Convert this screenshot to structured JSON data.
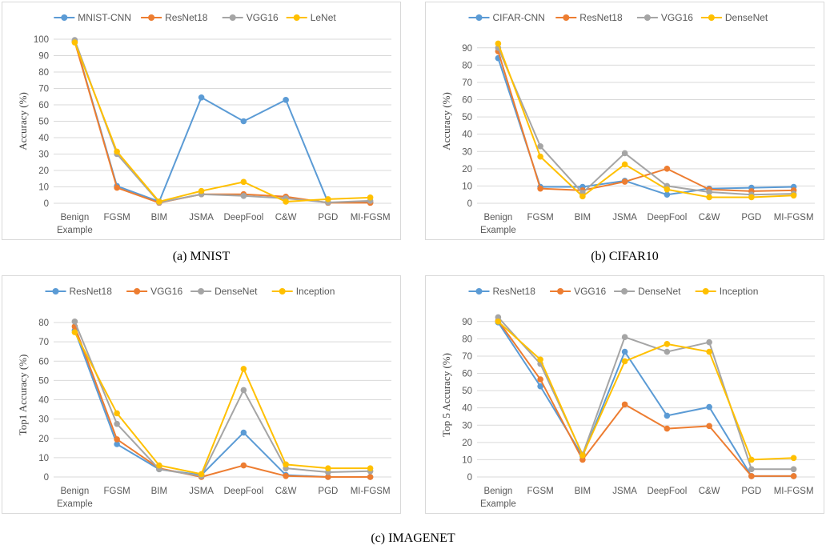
{
  "chart_data": [
    {
      "type": "line",
      "ylabel": "Accuracy (%)",
      "ylim": [
        0,
        100
      ],
      "yticks": [
        0,
        10,
        20,
        30,
        40,
        50,
        60,
        70,
        80,
        90,
        100
      ],
      "categories": [
        [
          "Benign",
          "Example"
        ],
        [
          "FGSM"
        ],
        [
          "BIM"
        ],
        [
          "JSMA"
        ],
        [
          "DeepFool"
        ],
        [
          "C&W"
        ],
        [
          "PGD"
        ],
        [
          "MI-FGSM"
        ]
      ],
      "legend": "top",
      "grid": true,
      "series": [
        {
          "name": "MNIST-CNN",
          "color": "#5b9bd5",
          "values": [
            99,
            10.5,
            1,
            64.5,
            50,
            63,
            0.5,
            0.5
          ]
        },
        {
          "name": "ResNet18",
          "color": "#ed7d31",
          "values": [
            98.5,
            9.5,
            0.3,
            5.5,
            5.5,
            4,
            0.3,
            0.3
          ]
        },
        {
          "name": "VGG16",
          "color": "#a5a5a5",
          "values": [
            99.5,
            30,
            0.5,
            5.5,
            4.5,
            3,
            0.5,
            1.5
          ]
        },
        {
          "name": "LeNet",
          "color": "#ffc000",
          "values": [
            98,
            31.5,
            1,
            7.5,
            13,
            1,
            2.5,
            3.5
          ]
        }
      ]
    },
    {
      "type": "line",
      "ylabel": "Accuracy (%)",
      "ylim": [
        0,
        95
      ],
      "yticks": [
        0,
        10,
        20,
        30,
        40,
        50,
        60,
        70,
        80,
        90
      ],
      "categories": [
        [
          "Benign",
          "Example"
        ],
        [
          "FGSM"
        ],
        [
          "BIM"
        ],
        [
          "JSMA"
        ],
        [
          "DeepFool"
        ],
        [
          "C&W"
        ],
        [
          "PGD"
        ],
        [
          "MI-FGSM"
        ]
      ],
      "legend": "top",
      "grid": true,
      "series": [
        {
          "name": "CIFAR-CNN",
          "color": "#5b9bd5",
          "values": [
            84,
            9.5,
            9.5,
            13,
            5,
            8.5,
            9,
            9.5
          ]
        },
        {
          "name": "ResNet18",
          "color": "#ed7d31",
          "values": [
            88,
            8.5,
            7.5,
            12.5,
            20,
            8,
            7,
            7.5
          ]
        },
        {
          "name": "VGG16",
          "color": "#a5a5a5",
          "values": [
            90,
            33,
            6,
            29,
            10,
            6.5,
            5,
            5.5
          ]
        },
        {
          "name": "DenseNet",
          "color": "#ffc000",
          "values": [
            92.5,
            27,
            4,
            22.5,
            8,
            3.5,
            3.5,
            4.5
          ]
        }
      ]
    },
    {
      "type": "line",
      "ylabel": "Top1 Accuracy (%)",
      "ylim": [
        0,
        85
      ],
      "yticks": [
        0,
        10,
        20,
        30,
        40,
        50,
        60,
        70,
        80
      ],
      "categories": [
        [
          "Benign",
          "Example"
        ],
        [
          "FGSM"
        ],
        [
          "BIM"
        ],
        [
          "JSMA"
        ],
        [
          "DeepFool"
        ],
        [
          "C&W"
        ],
        [
          "PGD"
        ],
        [
          "MI-FGSM"
        ]
      ],
      "legend": "top",
      "grid": true,
      "series": [
        {
          "name": "ResNet18",
          "color": "#5b9bd5",
          "values": [
            76,
            17,
            4,
            1,
            23,
            1,
            0,
            0
          ]
        },
        {
          "name": "VGG16",
          "color": "#ed7d31",
          "values": [
            78,
            19.5,
            4.5,
            0,
            6,
            0.5,
            0,
            0
          ]
        },
        {
          "name": "DenseNet",
          "color": "#a5a5a5",
          "values": [
            80.5,
            27.5,
            4,
            0.5,
            45,
            4.5,
            2.5,
            3
          ]
        },
        {
          "name": "Inception",
          "color": "#ffc000",
          "values": [
            75,
            33,
            6,
            1.5,
            56,
            6.5,
            4.5,
            4.5
          ]
        }
      ]
    },
    {
      "type": "line",
      "ylabel": "Top 5 Accuracy (%)",
      "ylim": [
        0,
        95
      ],
      "yticks": [
        0,
        10,
        20,
        30,
        40,
        50,
        60,
        70,
        80,
        90
      ],
      "categories": [
        [
          "Benign",
          "Example"
        ],
        [
          "FGSM"
        ],
        [
          "BIM"
        ],
        [
          "JSMA"
        ],
        [
          "DeepFool"
        ],
        [
          "C&W"
        ],
        [
          "PGD"
        ],
        [
          "MI-FGSM"
        ]
      ],
      "legend": "top",
      "grid": true,
      "series": [
        {
          "name": "ResNet18",
          "color": "#5b9bd5",
          "values": [
            89.5,
            52.5,
            12,
            72.5,
            35.5,
            40.5,
            0.5,
            0.5
          ]
        },
        {
          "name": "VGG16",
          "color": "#ed7d31",
          "values": [
            90.5,
            56.5,
            10,
            42,
            28,
            29.5,
            0.5,
            0.5
          ]
        },
        {
          "name": "DenseNet",
          "color": "#a5a5a5",
          "values": [
            92.5,
            65.5,
            13,
            81,
            72.5,
            78,
            4.5,
            4.5
          ]
        },
        {
          "name": "Inception",
          "color": "#ffc000",
          "values": [
            90,
            68,
            12.5,
            67,
            77,
            72.5,
            10,
            11
          ]
        }
      ]
    }
  ],
  "captions": {
    "a": "(a) MNIST",
    "b": "(b) CIFAR10",
    "c": "(c) IMAGENET"
  }
}
